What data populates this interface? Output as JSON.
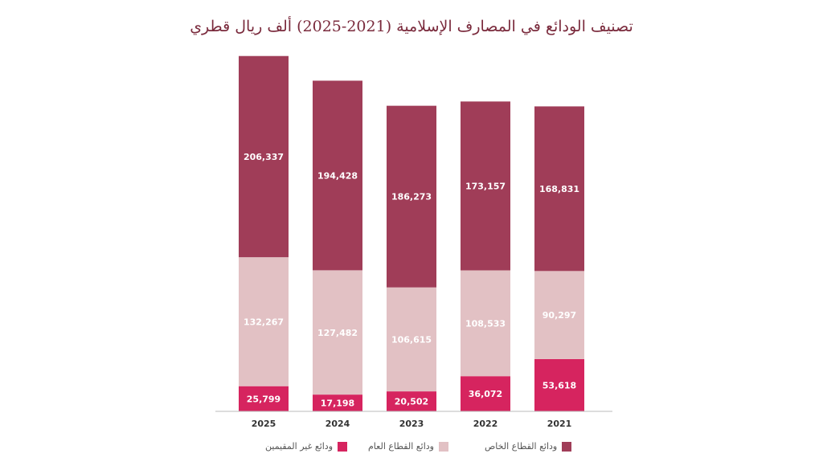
{
  "chart_data": {
    "type": "bar",
    "stacked": true,
    "title": "تصنيف الودائع في المصارف الإسلامية (2021-2025) ألف ريال قطري",
    "categories": [
      "2025",
      "2024",
      "2023",
      "2022",
      "2021"
    ],
    "series": [
      {
        "name": "ودائع غير المقيمين",
        "color": "#d6245f",
        "values": [
          25799,
          17198,
          20502,
          36072,
          53618
        ]
      },
      {
        "name": "ودائع القطاع العام",
        "color": "#e2c1c4",
        "values": [
          132267,
          127482,
          106615,
          108533,
          90297
        ]
      },
      {
        "name": "ودائع القطاع الخاص",
        "color": "#a03d58",
        "values": [
          206337,
          194428,
          186273,
          173157,
          168831
        ]
      }
    ],
    "ylim": [
      0,
      365000
    ],
    "grid": false,
    "legend_position": "bottom"
  }
}
